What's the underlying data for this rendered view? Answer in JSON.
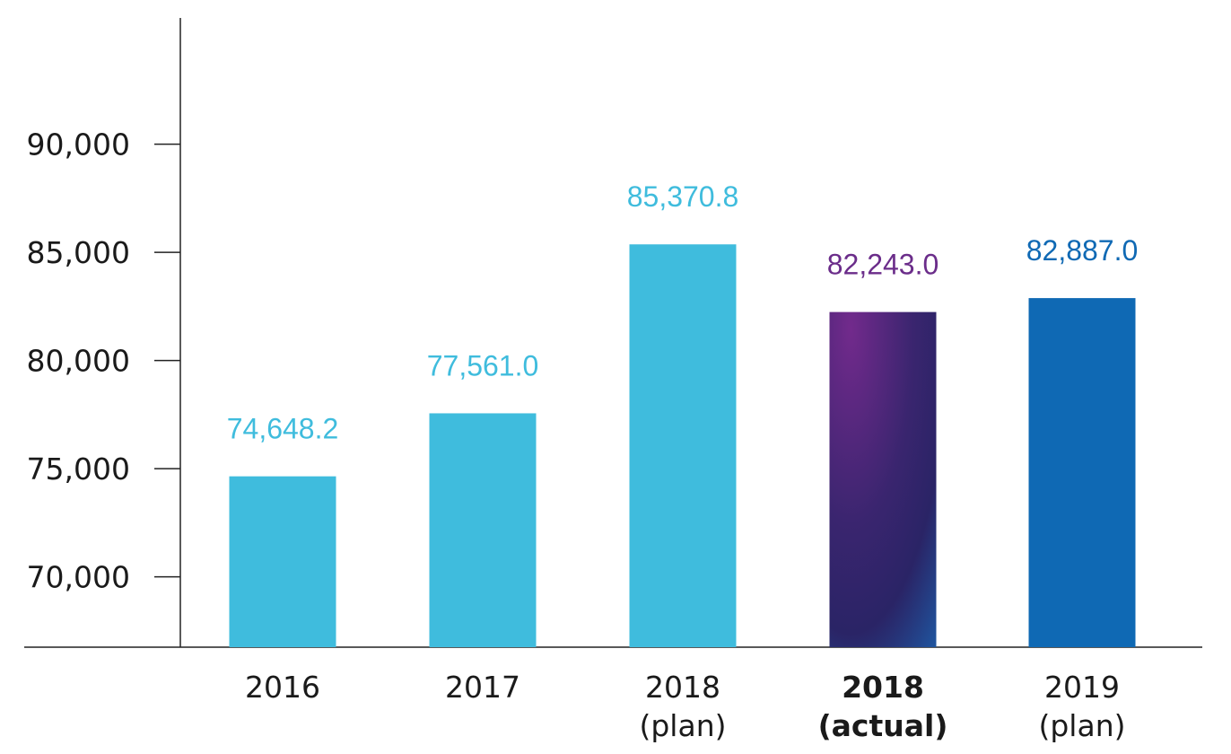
{
  "chart_data": {
    "type": "bar",
    "title": "",
    "xlabel": "",
    "ylabel": "",
    "ylim": [
      66750,
      95800
    ],
    "yticks": [
      70000,
      75000,
      80000,
      85000,
      90000
    ],
    "ytick_labels": [
      "70,000",
      "75,000",
      "80,000",
      "85,000",
      "90,000"
    ],
    "grid": false,
    "categories": [
      {
        "line1": "2016",
        "line2": "",
        "bold": false
      },
      {
        "line1": "2017",
        "line2": "",
        "bold": false
      },
      {
        "line1": "2018",
        "line2": "(plan)",
        "bold": false
      },
      {
        "line1": "2018",
        "line2": "(actual)",
        "bold": true
      },
      {
        "line1": "2019",
        "line2": "(plan)",
        "bold": false
      }
    ],
    "values": [
      74648.2,
      77561.0,
      85370.8,
      82243.0,
      82887.0
    ],
    "value_labels": [
      "74,648.2",
      "77,561.0",
      "85,370.8",
      "82,243.0",
      "82,887.0"
    ],
    "colors": [
      "#3fbcdd",
      "#3fbcdd",
      "#3fbcdd",
      "gradient",
      "#0f69b4"
    ],
    "label_colors": [
      "#3fbcdd",
      "#3fbcdd",
      "#3fbcdd",
      "#6b2d8a",
      "#0f69b4"
    ]
  }
}
